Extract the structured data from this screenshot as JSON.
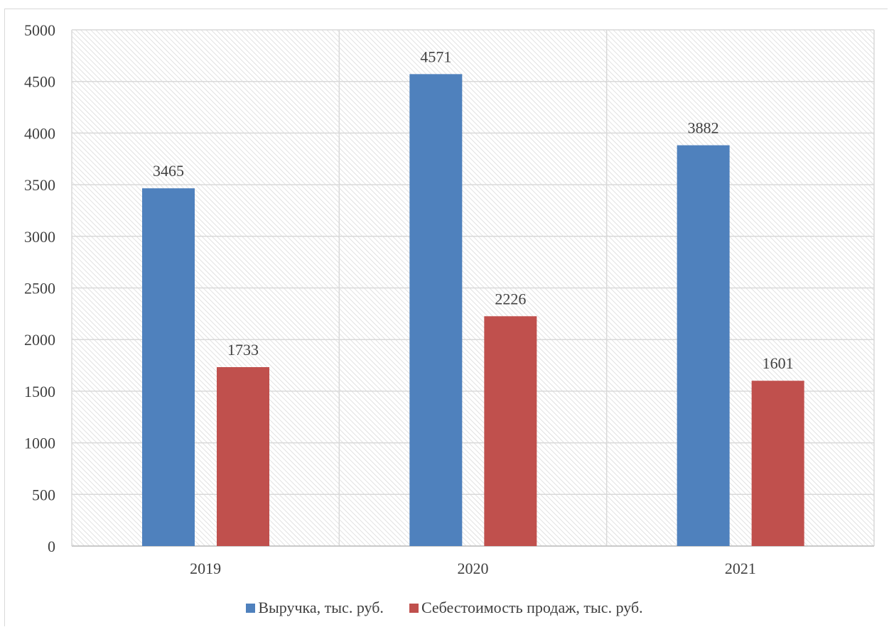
{
  "chart_data": {
    "type": "bar",
    "categories": [
      "2019",
      "2020",
      "2021"
    ],
    "series": [
      {
        "name": "Выручка, тыс. руб.",
        "values": [
          3465,
          4571,
          3882
        ],
        "color": "#4f81bd"
      },
      {
        "name": "Себестоимость продаж, тыс.  руб.",
        "values": [
          1733,
          2226,
          1601
        ],
        "color": "#c0504d"
      }
    ],
    "ylim": [
      0,
      5000
    ],
    "yticks": [
      "0",
      "500",
      "1000",
      "1500",
      "2000",
      "2500",
      "3000",
      "3500",
      "4000",
      "4500",
      "5000"
    ],
    "data_labels": true,
    "grid": true,
    "legend_position": "bottom",
    "title": "",
    "xlabel": "",
    "ylabel": ""
  }
}
